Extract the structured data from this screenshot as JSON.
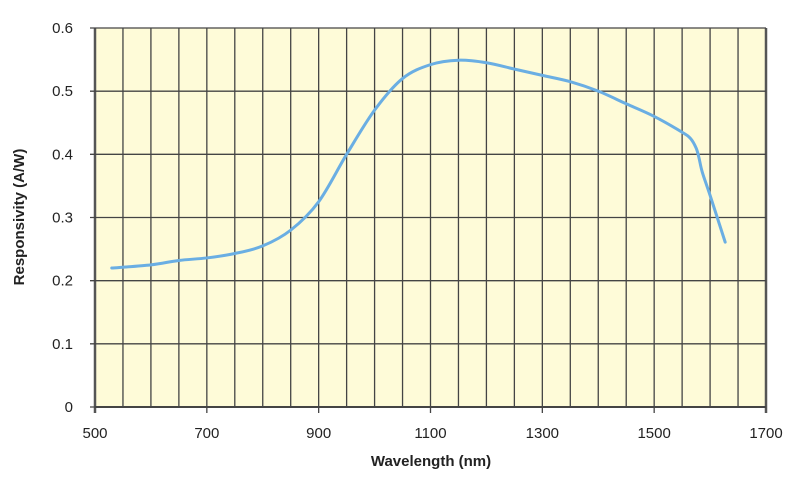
{
  "chart_data": {
    "type": "line",
    "title": "",
    "xlabel": "Wavelength (nm)",
    "ylabel": "Responsivity (A/W)",
    "xlim": [
      500,
      1700
    ],
    "ylim": [
      0,
      0.6
    ],
    "xticks": [
      500,
      700,
      900,
      1100,
      1300,
      1500,
      1700
    ],
    "yticks": [
      0,
      0.1,
      0.2,
      0.3,
      0.4,
      0.5,
      0.6
    ],
    "xtick_labels": [
      "500",
      "700",
      "900",
      "1100",
      "1300",
      "1500",
      "1700"
    ],
    "ytick_labels": [
      "0",
      "0.1",
      "0.2",
      "0.3",
      "0.4",
      "0.5",
      "0.6"
    ],
    "grid": true,
    "x_grid_step": 50,
    "colors": {
      "line": "#6AAEE3",
      "plot_bg": "#FEFBD8",
      "grid": "#444444"
    },
    "series": [
      {
        "name": "Responsivity",
        "x": [
          530,
          600,
          650,
          700,
          750,
          800,
          850,
          900,
          950,
          1000,
          1050,
          1100,
          1150,
          1200,
          1250,
          1300,
          1350,
          1400,
          1450,
          1500,
          1550,
          1565,
          1575,
          1580,
          1586,
          1600,
          1627
        ],
        "y": [
          0.22,
          0.225,
          0.232,
          0.236,
          0.243,
          0.255,
          0.28,
          0.325,
          0.4,
          0.47,
          0.52,
          0.542,
          0.549,
          0.545,
          0.535,
          0.525,
          0.515,
          0.5,
          0.48,
          0.46,
          0.435,
          0.425,
          0.41,
          0.395,
          0.372,
          0.335,
          0.261
        ]
      }
    ]
  }
}
